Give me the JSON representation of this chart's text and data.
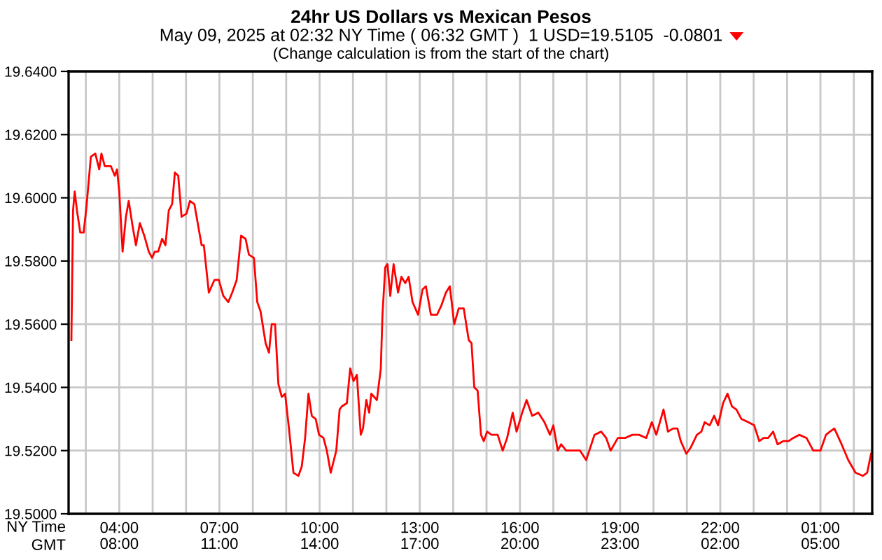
{
  "chart_data": {
    "type": "line",
    "title": "24hr US Dollars vs Mexican Pesos",
    "subtitle": "May 09, 2025 at 02:32 NY Time ( 06:32 GMT )  1 USD=19.5105  -0.0801",
    "annotations": [
      "(Change calculation is from the start of the chart)"
    ],
    "xlabel": "NY Time",
    "x2label": "GMT",
    "x": [
      "2025-05-08T02:34",
      "2025-05-08T02:37",
      "2025-05-08T02:40",
      "2025-05-08T02:44",
      "2025-05-08T02:50",
      "2025-05-08T02:56",
      "2025-05-08T03:01",
      "2025-05-08T03:09",
      "2025-05-08T03:17",
      "2025-05-08T03:24",
      "2025-05-08T03:28",
      "2025-05-08T03:34",
      "2025-05-08T03:45",
      "2025-05-08T03:52",
      "2025-05-08T03:56",
      "2025-05-08T04:00",
      "2025-05-08T04:06",
      "2025-05-08T04:12",
      "2025-05-08T04:17",
      "2025-05-08T04:24",
      "2025-05-08T04:30",
      "2025-05-08T04:37",
      "2025-05-08T04:45",
      "2025-05-08T04:53",
      "2025-05-08T04:59",
      "2025-05-08T05:04",
      "2025-05-08T05:10",
      "2025-05-08T05:17",
      "2025-05-08T05:23",
      "2025-05-08T05:29",
      "2025-05-08T05:35",
      "2025-05-08T05:40",
      "2025-05-08T05:46",
      "2025-05-08T05:52",
      "2025-05-08T06:01",
      "2025-05-08T06:07",
      "2025-05-08T06:15",
      "2025-05-08T06:22",
      "2025-05-08T06:28",
      "2025-05-08T06:32",
      "2025-05-08T06:41",
      "2025-05-08T06:51",
      "2025-05-08T06:59",
      "2025-05-08T07:07",
      "2025-05-08T07:16",
      "2025-05-08T07:23",
      "2025-05-08T07:31",
      "2025-05-08T07:39",
      "2025-05-08T07:47",
      "2025-05-08T07:53",
      "2025-05-08T08:02",
      "2025-05-08T08:08",
      "2025-05-08T08:14",
      "2025-05-08T08:23",
      "2025-05-08T08:29",
      "2025-05-08T08:34",
      "2025-05-08T08:40",
      "2025-05-08T08:46",
      "2025-05-08T08:52",
      "2025-05-08T08:58",
      "2025-05-08T09:05",
      "2025-05-08T09:13",
      "2025-05-08T09:22",
      "2025-05-08T09:28",
      "2025-05-08T09:34",
      "2025-05-08T09:40",
      "2025-05-08T09:46",
      "2025-05-08T09:53",
      "2025-05-08T09:59",
      "2025-05-08T10:07",
      "2025-05-08T10:13",
      "2025-05-08T10:20",
      "2025-05-08T10:30",
      "2025-05-08T10:36",
      "2025-05-08T10:40",
      "2025-05-08T10:49",
      "2025-05-08T10:55",
      "2025-05-08T11:01",
      "2025-05-08T11:07",
      "2025-05-08T11:14",
      "2025-05-08T11:18",
      "2025-05-08T11:24",
      "2025-05-08T11:29",
      "2025-05-08T11:33",
      "2025-05-08T11:43",
      "2025-05-08T11:50",
      "2025-05-08T11:53",
      "2025-05-08T11:58",
      "2025-05-08T12:02",
      "2025-05-08T12:07",
      "2025-05-08T12:13",
      "2025-05-08T12:21",
      "2025-05-08T12:27",
      "2025-05-08T12:34",
      "2025-05-08T12:40",
      "2025-05-08T12:47",
      "2025-05-08T12:57",
      "2025-05-08T13:05",
      "2025-05-08T13:11",
      "2025-05-08T13:20",
      "2025-05-08T13:31",
      "2025-05-08T13:39",
      "2025-05-08T13:47",
      "2025-05-08T13:54",
      "2025-05-08T14:02",
      "2025-05-08T14:10",
      "2025-05-08T14:19",
      "2025-05-08T14:28",
      "2025-05-08T14:33",
      "2025-05-08T14:38",
      "2025-05-08T14:44",
      "2025-05-08T14:50",
      "2025-05-08T14:55",
      "2025-05-08T15:01",
      "2025-05-08T15:09",
      "2025-05-08T15:20",
      "2025-05-08T15:29",
      "2025-05-08T15:37",
      "2025-05-08T15:47",
      "2025-05-08T15:54",
      "2025-05-08T16:04",
      "2025-05-08T16:12",
      "2025-05-08T16:22",
      "2025-05-08T16:33",
      "2025-05-08T16:44",
      "2025-05-08T16:54",
      "2025-05-08T17:00",
      "2025-05-08T17:08",
      "2025-05-08T17:14",
      "2025-05-08T17:23",
      "2025-05-08T17:35",
      "2025-05-08T17:48",
      "2025-05-08T17:59",
      "2025-05-08T18:14",
      "2025-05-08T18:26",
      "2025-05-08T18:35",
      "2025-05-08T18:43",
      "2025-05-08T18:56",
      "2025-05-08T19:09",
      "2025-05-08T19:22",
      "2025-05-08T19:34",
      "2025-05-08T19:47",
      "2025-05-08T19:57",
      "2025-05-08T20:05",
      "2025-05-08T20:18",
      "2025-05-08T20:26",
      "2025-05-08T20:35",
      "2025-05-08T20:43",
      "2025-05-08T20:49",
      "2025-05-08T20:59",
      "2025-05-08T21:07",
      "2025-05-08T21:18",
      "2025-05-08T21:26",
      "2025-05-08T21:32",
      "2025-05-08T21:41",
      "2025-05-08T21:49",
      "2025-05-08T21:56",
      "2025-05-08T22:05",
      "2025-05-08T22:13",
      "2025-05-08T22:21",
      "2025-05-08T22:29",
      "2025-05-08T22:38",
      "2025-05-08T22:50",
      "2025-05-08T23:01",
      "2025-05-08T23:10",
      "2025-05-08T23:18",
      "2025-05-08T23:26",
      "2025-05-08T23:35",
      "2025-05-08T23:43",
      "2025-05-08T23:53",
      "2025-05-09T00:03",
      "2025-05-09T00:11",
      "2025-05-09T00:22",
      "2025-05-09T00:35",
      "2025-05-09T00:47",
      "2025-05-09T01:00",
      "2025-05-09T01:10",
      "2025-05-09T01:17",
      "2025-05-09T01:25",
      "2025-05-09T01:38",
      "2025-05-09T01:50",
      "2025-05-09T02:03",
      "2025-05-09T02:16",
      "2025-05-09T02:24",
      "2025-05-09T02:31"
    ],
    "series": [
      {
        "color": "#ff0000",
        "values": [
          19.555,
          19.596,
          19.602,
          19.596,
          19.589,
          19.589,
          19.597,
          19.613,
          19.614,
          19.609,
          19.614,
          19.61,
          19.61,
          19.607,
          19.609,
          19.602,
          19.583,
          19.594,
          19.599,
          19.591,
          19.585,
          19.592,
          19.588,
          19.583,
          19.581,
          19.583,
          19.583,
          19.587,
          19.585,
          19.596,
          19.598,
          19.608,
          19.607,
          19.594,
          19.595,
          19.599,
          19.598,
          19.591,
          19.585,
          19.585,
          19.57,
          19.574,
          19.574,
          19.569,
          19.567,
          19.57,
          19.574,
          19.588,
          19.587,
          19.582,
          19.581,
          19.567,
          19.564,
          19.554,
          19.551,
          19.56,
          19.56,
          19.541,
          19.537,
          19.538,
          19.527,
          19.513,
          19.512,
          19.515,
          19.524,
          19.538,
          19.531,
          19.53,
          19.525,
          19.524,
          19.52,
          19.513,
          19.52,
          19.533,
          19.534,
          19.535,
          19.546,
          19.542,
          19.544,
          19.525,
          19.527,
          19.536,
          19.532,
          19.538,
          19.536,
          19.546,
          19.563,
          19.578,
          19.579,
          19.569,
          19.579,
          19.57,
          19.575,
          19.573,
          19.575,
          19.567,
          19.563,
          19.571,
          19.572,
          19.563,
          19.563,
          19.566,
          19.57,
          19.572,
          19.56,
          19.565,
          19.565,
          19.555,
          19.554,
          19.54,
          19.539,
          19.525,
          19.523,
          19.526,
          19.525,
          19.525,
          19.52,
          19.524,
          19.532,
          19.526,
          19.532,
          19.536,
          19.531,
          19.532,
          19.529,
          19.525,
          19.528,
          19.52,
          19.522,
          19.52,
          19.52,
          19.52,
          19.517,
          19.525,
          19.526,
          19.524,
          19.52,
          19.524,
          19.524,
          19.525,
          19.525,
          19.524,
          19.529,
          19.525,
          19.533,
          19.526,
          19.527,
          19.527,
          19.523,
          19.519,
          19.521,
          19.525,
          19.526,
          19.529,
          19.528,
          19.531,
          19.528,
          19.535,
          19.538,
          19.534,
          19.533,
          19.53,
          19.529,
          19.528,
          19.523,
          19.524,
          19.524,
          19.526,
          19.522,
          19.523,
          19.523,
          19.524,
          19.525,
          19.524,
          19.52,
          19.52,
          19.525,
          19.526,
          19.527,
          19.522,
          19.517,
          19.513,
          19.512,
          19.513,
          19.519
        ]
      }
    ],
    "xlim": [
      "2025-05-08T02:29",
      "2025-05-09T02:33"
    ],
    "xticks": [
      {
        "value": "2025-05-08T03:00",
        "label": null
      },
      {
        "value": "2025-05-08T04:00",
        "label": "04:00"
      },
      {
        "value": "2025-05-08T05:00",
        "label": null
      },
      {
        "value": "2025-05-08T06:00",
        "label": null
      },
      {
        "value": "2025-05-08T07:00",
        "label": "07:00"
      },
      {
        "value": "2025-05-08T08:00",
        "label": null
      },
      {
        "value": "2025-05-08T09:00",
        "label": null
      },
      {
        "value": "2025-05-08T10:00",
        "label": "10:00"
      },
      {
        "value": "2025-05-08T11:00",
        "label": null
      },
      {
        "value": "2025-05-08T12:00",
        "label": null
      },
      {
        "value": "2025-05-08T13:00",
        "label": "13:00"
      },
      {
        "value": "2025-05-08T14:00",
        "label": null
      },
      {
        "value": "2025-05-08T15:00",
        "label": null
      },
      {
        "value": "2025-05-08T16:00",
        "label": "16:00"
      },
      {
        "value": "2025-05-08T17:00",
        "label": null
      },
      {
        "value": "2025-05-08T18:00",
        "label": null
      },
      {
        "value": "2025-05-08T19:00",
        "label": "19:00"
      },
      {
        "value": "2025-05-08T20:00",
        "label": null
      },
      {
        "value": "2025-05-08T21:00",
        "label": null
      },
      {
        "value": "2025-05-08T22:00",
        "label": "22:00"
      },
      {
        "value": "2025-05-08T23:00",
        "label": null
      },
      {
        "value": "2025-05-09T00:00",
        "label": null
      },
      {
        "value": "2025-05-09T01:00",
        "label": "01:00"
      },
      {
        "value": "2025-05-09T02:00",
        "label": null
      }
    ],
    "x2lim": [
      "2025-05-08T06:29",
      "2025-05-09T06:33"
    ],
    "x2ticks": [
      {
        "value": "2025-05-08T08:00",
        "label": "08:00"
      },
      {
        "value": "2025-05-08T11:00",
        "label": "11:00"
      },
      {
        "value": "2025-05-08T14:00",
        "label": "14:00"
      },
      {
        "value": "2025-05-08T17:00",
        "label": "17:00"
      },
      {
        "value": "2025-05-08T20:00",
        "label": "20:00"
      },
      {
        "value": "2025-05-08T23:00",
        "label": "23:00"
      },
      {
        "value": "2025-05-09T02:00",
        "label": "02:00"
      },
      {
        "value": "2025-05-09T05:00",
        "label": "05:00"
      }
    ],
    "ylim": [
      19.5,
      19.64
    ],
    "yticks": [
      {
        "value": 19.5,
        "label": "19.5000"
      },
      {
        "value": 19.52,
        "label": "19.5200"
      },
      {
        "value": 19.54,
        "label": "19.5400"
      },
      {
        "value": 19.56,
        "label": "19.5600"
      },
      {
        "value": 19.58,
        "label": "19.5800"
      },
      {
        "value": 19.6,
        "label": "19.6000"
      },
      {
        "value": 19.62,
        "label": "19.6200"
      },
      {
        "value": 19.64,
        "label": "19.6400"
      }
    ],
    "grid": true,
    "marker": "none",
    "line_style": "solid"
  }
}
